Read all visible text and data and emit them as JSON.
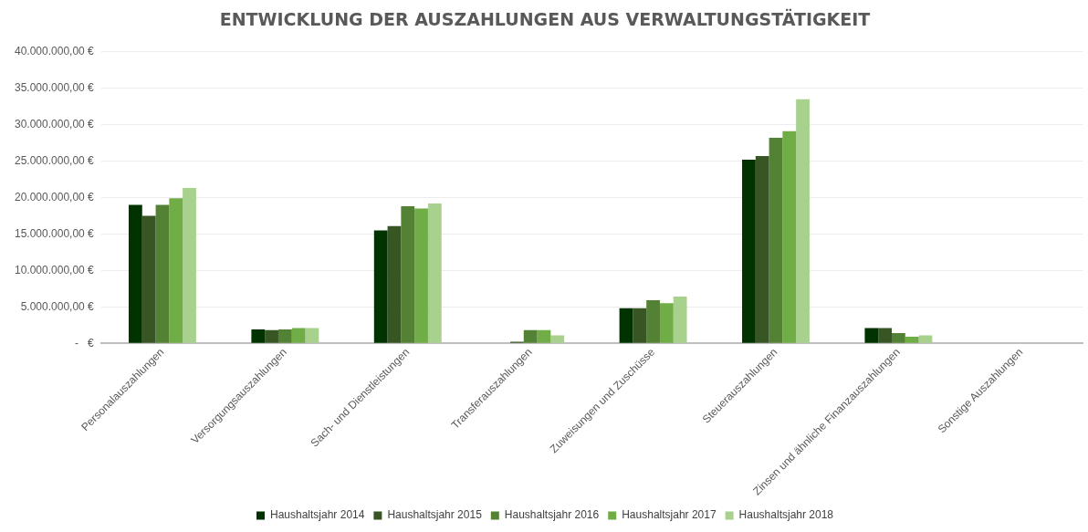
{
  "chart_data": {
    "type": "bar",
    "title": "ENTWICKLUNG DER AUSZAHLUNGEN AUS VERWALTUNGSTÄTIGKEIT",
    "categories": [
      "Personalauszahlungen",
      "Versorgungsauszahlungen",
      "Sach- und Dienstleistungen",
      "Transferauszahlungen",
      "Zuweisungen und Zuschüsse",
      "Steuerauszahlungen",
      "Zinsen und ähnliche Finanzauszahlungen",
      "Sonstige Auszahlungen"
    ],
    "series": [
      {
        "name": "Haushaltsjahr 2014",
        "color": "#003300",
        "values": [
          19000000,
          1900000,
          15500000,
          0,
          4800000,
          25200000,
          2100000,
          0
        ]
      },
      {
        "name": "Haushaltsjahr 2015",
        "color": "#375623",
        "values": [
          17500000,
          1800000,
          16100000,
          200000,
          4800000,
          25700000,
          2100000,
          0
        ]
      },
      {
        "name": "Haushaltsjahr 2016",
        "color": "#548235",
        "values": [
          19000000,
          1900000,
          18800000,
          1800000,
          5900000,
          28200000,
          1400000,
          0
        ]
      },
      {
        "name": "Haushaltsjahr 2017",
        "color": "#70ad47",
        "values": [
          19900000,
          2100000,
          18500000,
          1800000,
          5500000,
          29100000,
          900000,
          0
        ]
      },
      {
        "name": "Haushaltsjahr 2018",
        "color": "#a9d18e",
        "values": [
          21300000,
          2100000,
          19200000,
          1100000,
          6400000,
          33500000,
          1100000,
          0
        ]
      }
    ],
    "ylim": [
      0,
      40000000
    ],
    "yticks": [
      {
        "value": 0,
        "label": "-   €"
      },
      {
        "value": 5000000,
        "label": "5.000.000,00 €"
      },
      {
        "value": 10000000,
        "label": "10.000.000,00 €"
      },
      {
        "value": 15000000,
        "label": "15.000.000,00 €"
      },
      {
        "value": 20000000,
        "label": "20.000.000,00 €"
      },
      {
        "value": 25000000,
        "label": "25.000.000,00 €"
      },
      {
        "value": 30000000,
        "label": "30.000.000,00 €"
      },
      {
        "value": 35000000,
        "label": "35.000.000,00 €"
      },
      {
        "value": 40000000,
        "label": "40.000.000,00 €"
      }
    ],
    "grid": "y",
    "legend": "bottom"
  }
}
